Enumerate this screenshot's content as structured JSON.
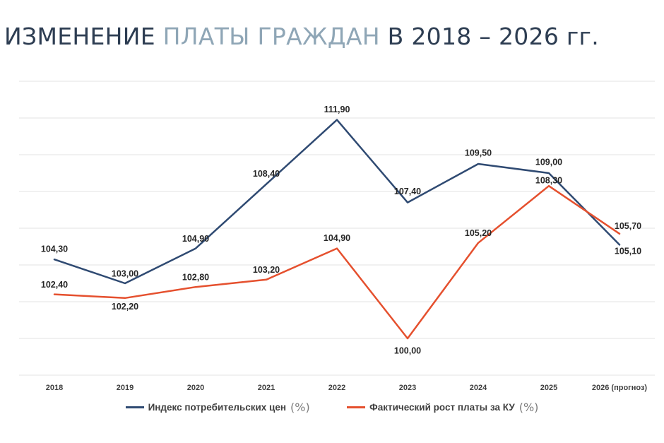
{
  "page": {
    "title_part1": "ИЗМЕНЕНИЕ ",
    "title_part2": "ПЛАТЫ ГРАЖДАН",
    "title_part3": " В 2018 – 2026 гг."
  },
  "colors": {
    "title_dark": "#2d3d52",
    "title_light": "#8fa6b6",
    "series_cpi": "#2f4a72",
    "series_fee": "#e5502e"
  },
  "chart_data": {
    "type": "line",
    "title": "",
    "xlabel": "",
    "ylabel": "",
    "categories": [
      "2018",
      "2019",
      "2020",
      "2021",
      "2022",
      "2023",
      "2024",
      "2025",
      "2026 (прогноз)"
    ],
    "ylim": [
      98,
      114
    ],
    "grid": true,
    "legend_position": "bottom",
    "series": [
      {
        "name": "Индекс потребительских цен",
        "unit": "(%)",
        "color": "#2f4a72",
        "values": [
          104.3,
          103.0,
          104.9,
          108.4,
          111.9,
          107.4,
          109.5,
          109.0,
          105.1
        ],
        "labels": [
          "104,30",
          "103,00",
          "104,90",
          "108,40",
          "111,90",
          "107,40",
          "109,50",
          "109,00",
          "105,10"
        ]
      },
      {
        "name": "Фактический рост платы за КУ",
        "unit": "(%)",
        "color": "#e5502e",
        "values": [
          102.4,
          102.2,
          102.8,
          103.2,
          104.9,
          100.0,
          105.2,
          108.3,
          105.7
        ],
        "labels": [
          "102,40",
          "102,20",
          "102,80",
          "103,20",
          "104,90",
          "100,00",
          "105,20",
          "108,30",
          "105,70"
        ]
      }
    ]
  }
}
